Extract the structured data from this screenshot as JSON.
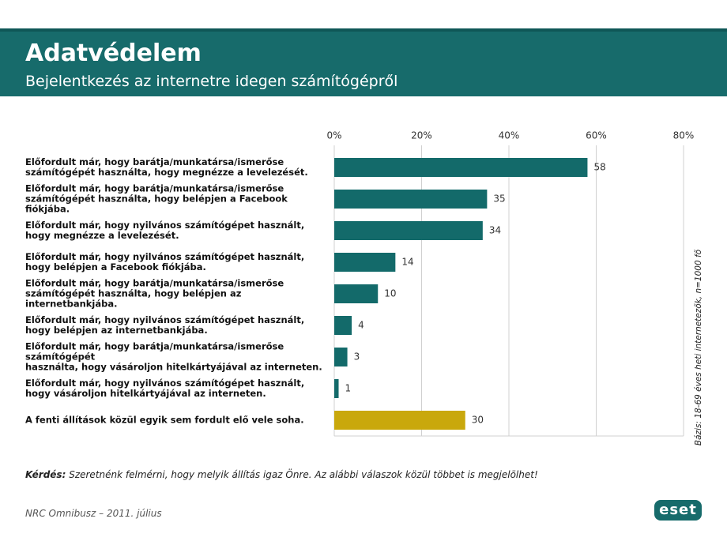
{
  "header": {
    "title": "Adatvédelem",
    "subtitle": "Bejelentkezés az internetre idegen számítógépről"
  },
  "chart_data": {
    "type": "bar",
    "orientation": "horizontal",
    "categories": [
      "Előfordult már, hogy barátja/munkatársa/ismerőse\nszámítógépét használta, hogy megnézze a levelezését.",
      "Előfordult már, hogy barátja/munkatársa/ismerőse\nszámítógépét használta, hogy belépjen a Facebook fiókjába.",
      "Előfordult már, hogy nyilvános számítógépet használt,\nhogy megnézze a levelezését.",
      "Előfordult már, hogy nyilvános számítógépet használt,\nhogy belépjen a Facebook fiókjába.",
      "Előfordult már, hogy barátja/munkatársa/ismerőse\nszámítógépét használta, hogy belépjen az internetbankjába.",
      "Előfordult már, hogy nyilvános számítógépet használt,\nhogy belépjen az internetbankjába.",
      "Előfordult már, hogy barátja/munkatársa/ismerőse számítógépét\nhasználta, hogy vásároljon hitelkártyájával az interneten.",
      "Előfordult már, hogy nyilvános számítógépet használt,\nhogy vásároljon hitelkártyájával az interneten.",
      "A fenti állítások közül egyik sem fordult elő vele soha."
    ],
    "values": [
      58,
      35,
      34,
      14,
      10,
      4,
      3,
      1,
      30
    ],
    "colors": [
      "#136a6a",
      "#136a6a",
      "#136a6a",
      "#136a6a",
      "#136a6a",
      "#136a6a",
      "#136a6a",
      "#136a6a",
      "#c9a80c"
    ],
    "xlim": [
      0,
      80
    ],
    "xticks": [
      {
        "value": 0,
        "label": "0%"
      },
      {
        "value": 20,
        "label": "20%"
      },
      {
        "value": 40,
        "label": "40%"
      },
      {
        "value": 60,
        "label": "60%"
      },
      {
        "value": 80,
        "label": "80%"
      }
    ],
    "grid": true,
    "side_note": "Bázis: 18-69 éves heti internetezők, n=1000 fő"
  },
  "question": {
    "label": "Kérdés:",
    "text": "Szeretnénk felmérni, hogy melyik állítás igaz Önre. Az alábbi válaszok közül többet is megjelölhet!"
  },
  "footer": {
    "source": "NRC Omnibusz – 2011. július",
    "logo": "eset"
  }
}
